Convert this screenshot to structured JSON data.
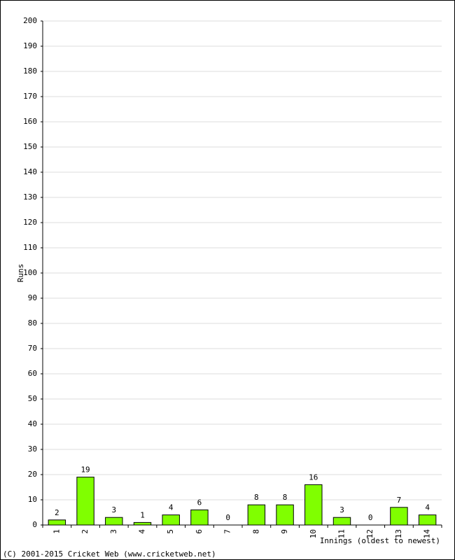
{
  "chart_data": {
    "type": "bar",
    "x_label": "Innings (oldest to newest)",
    "y_label": "Runs",
    "footer": "(C) 2001-2015 Cricket Web (www.cricketweb.net)",
    "categories": [
      "1",
      "2",
      "3",
      "4",
      "5",
      "6",
      "7",
      "8",
      "9",
      "10",
      "11",
      "12",
      "13",
      "14"
    ],
    "values": [
      2,
      19,
      3,
      1,
      4,
      6,
      0,
      8,
      8,
      16,
      3,
      0,
      7,
      4
    ],
    "color": "#80ff00",
    "label_color": "#000080",
    "ylim": [
      0,
      200
    ],
    "yticks": [
      0,
      10,
      20,
      30,
      40,
      50,
      60,
      70,
      80,
      90,
      100,
      110,
      120,
      130,
      140,
      150,
      160,
      170,
      180,
      190,
      200
    ],
    "grid": true
  }
}
